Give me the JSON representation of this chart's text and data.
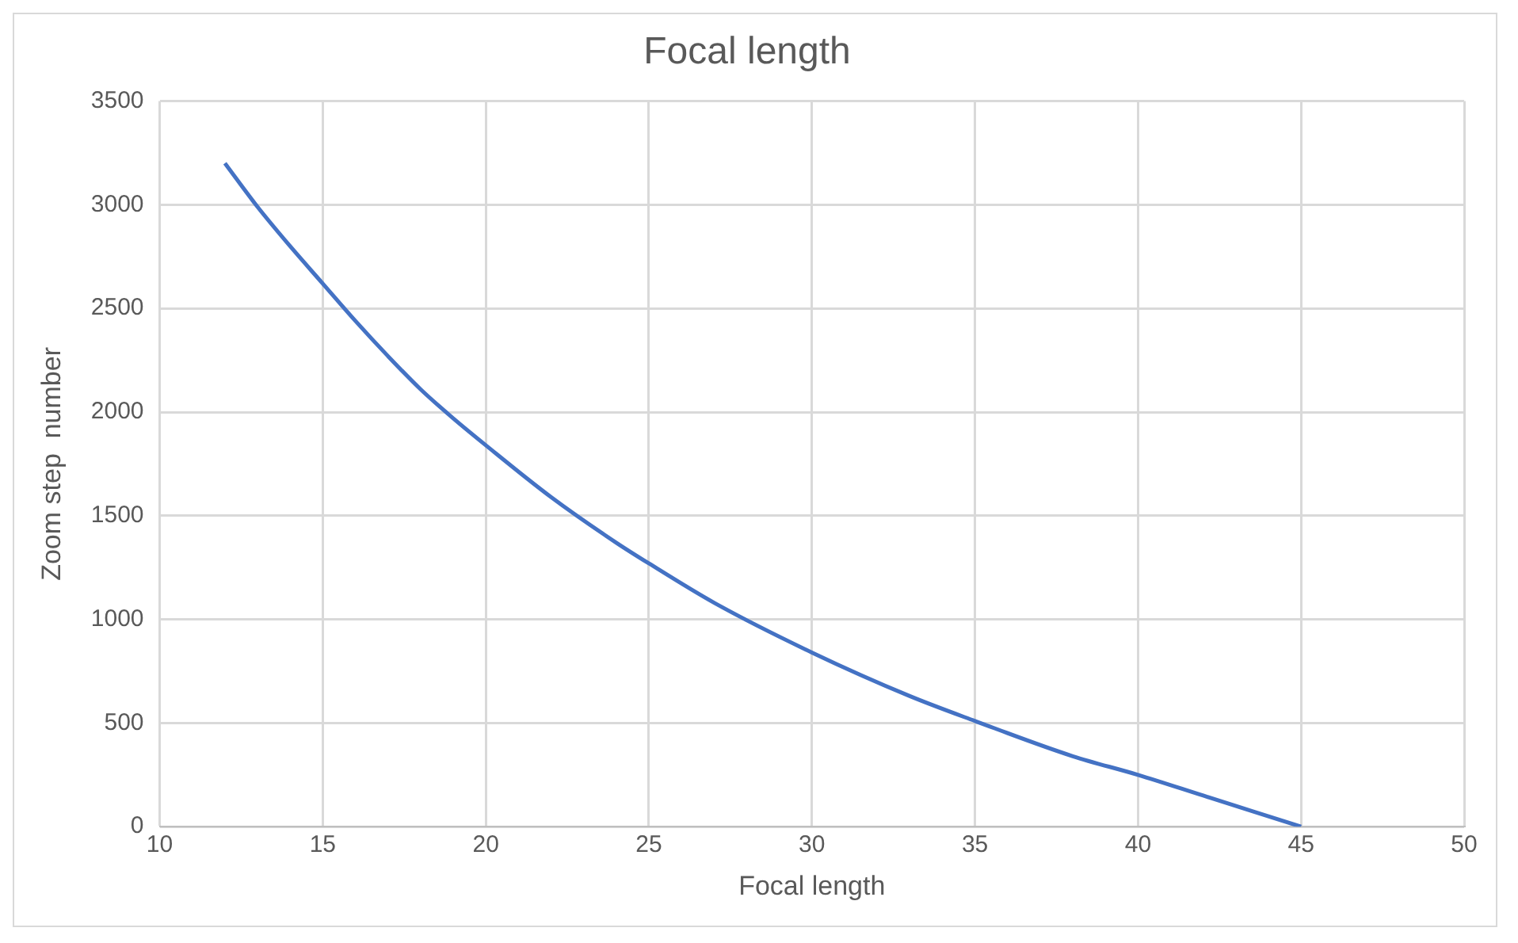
{
  "chart_data": {
    "type": "line",
    "title": "Focal length",
    "xlabel": "Focal length",
    "ylabel": "Zoom step  number",
    "series": [
      {
        "color": "#4472c4",
        "x": [
          12,
          13,
          14,
          15,
          16,
          17,
          18,
          19,
          20,
          22,
          24,
          25,
          27,
          30,
          33,
          35,
          38,
          40,
          42,
          45
        ],
        "values": [
          3200,
          2990,
          2800,
          2620,
          2440,
          2270,
          2110,
          1970,
          1840,
          1590,
          1370,
          1270,
          1080,
          840,
          630,
          510,
          340,
          250,
          150,
          0
        ]
      }
    ],
    "xlim": [
      10,
      50
    ],
    "xticks": [
      10,
      15,
      20,
      25,
      30,
      35,
      40,
      45,
      50
    ],
    "ylim": [
      0,
      3500
    ],
    "yticks": [
      0,
      500,
      1000,
      1500,
      2000,
      2500,
      3000,
      3500
    ],
    "grid": true,
    "legend": false,
    "marker": "none",
    "line_style": "solid"
  }
}
